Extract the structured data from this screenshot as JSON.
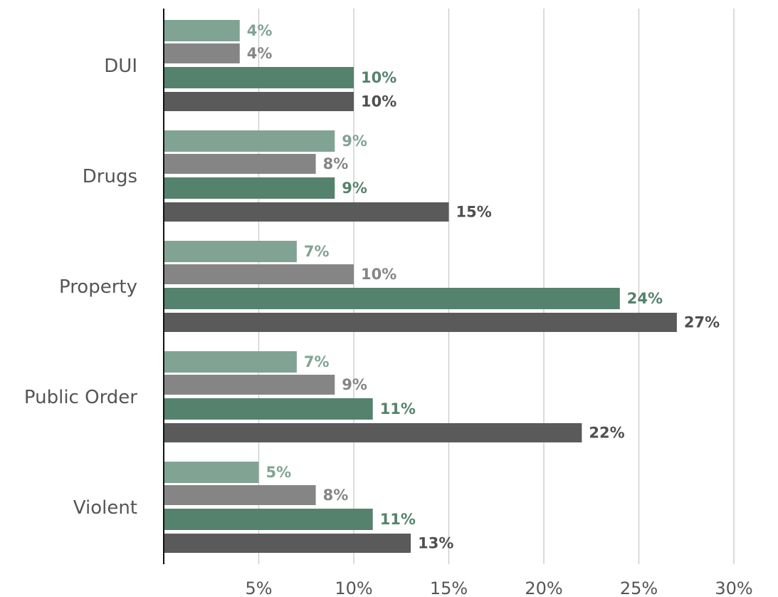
{
  "chart_data": {
    "type": "bar",
    "orientation": "horizontal",
    "categories": [
      "DUI",
      "Drugs",
      "Property",
      "Public Order",
      "Violent"
    ],
    "series": [
      {
        "values": [
          4,
          9,
          7,
          7,
          5
        ],
        "color": "#81a393",
        "label_color": "#81a393"
      },
      {
        "values": [
          4,
          8,
          10,
          9,
          8
        ],
        "color": "#858585",
        "label_color": "#858585"
      },
      {
        "values": [
          10,
          9,
          24,
          11,
          11
        ],
        "color": "#55826d",
        "label_color": "#55826d"
      },
      {
        "values": [
          10,
          15,
          27,
          22,
          13
        ],
        "color": "#5a5a5a",
        "label_color": "#4f4f4f"
      }
    ],
    "value_suffix": "%",
    "x_ticks": [
      5,
      10,
      15,
      20,
      25,
      30
    ],
    "x_tick_labels": [
      "5%",
      "10%",
      "15%",
      "20%",
      "25%",
      "30%"
    ],
    "xlim": [
      0,
      30
    ],
    "grid": true,
    "legend": "none"
  }
}
